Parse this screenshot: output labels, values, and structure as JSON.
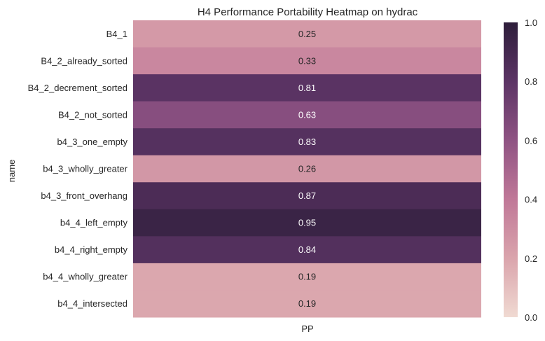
{
  "chart_data": {
    "type": "heatmap",
    "title": "H4 Performance Portability Heatmap on hydrac",
    "xlabel": "",
    "ylabel": "name",
    "columns": [
      "PP"
    ],
    "rows": [
      "B4_1",
      "B4_2_already_sorted",
      "B4_2_decrement_sorted",
      "B4_2_not_sorted",
      "b4_3_one_empty",
      "b4_3_wholly_greater",
      "b4_3_front_overhang",
      "b4_4_left_empty",
      "b4_4_right_empty",
      "b4_4_wholly_greater",
      "b4_4_intersected"
    ],
    "values": [
      0.25,
      0.33,
      0.81,
      0.63,
      0.83,
      0.26,
      0.87,
      0.95,
      0.84,
      0.19,
      0.19
    ],
    "value_labels": [
      "0.25",
      "0.33",
      "0.81",
      "0.63",
      "0.83",
      "0.26",
      "0.87",
      "0.95",
      "0.84",
      "0.19",
      "0.19"
    ],
    "colorbar": {
      "range": [
        0.0,
        1.0
      ],
      "ticks": [
        0.0,
        0.2,
        0.4,
        0.6,
        0.8,
        1.0
      ],
      "tick_labels": [
        "0.0",
        "0.2",
        "0.4",
        "0.6",
        "0.8",
        "1.0"
      ],
      "colormap": [
        "#f0dad2",
        "#daa4ac",
        "#c07898",
        "#8f5383",
        "#5c3465",
        "#2e1e3b"
      ]
    }
  }
}
